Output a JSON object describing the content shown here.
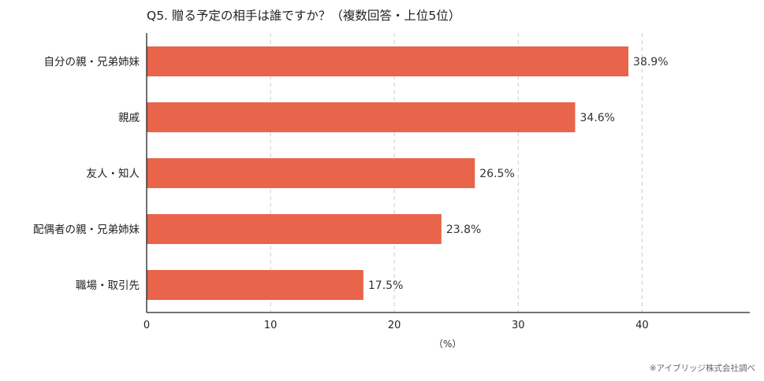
{
  "chart_data": {
    "type": "bar",
    "orientation": "horizontal",
    "title": "Q5. 贈る予定の相手は誰ですか？（複数回答・上位5位）",
    "categories": [
      "自分の親・兄弟姉妹",
      "親戚",
      "友人・知人",
      "配偶者の親・兄弟姉妹",
      "職場・取引先"
    ],
    "values": [
      38.9,
      34.6,
      26.5,
      23.8,
      17.5
    ],
    "value_labels": [
      "38.9%",
      "34.6%",
      "26.5%",
      "23.8%",
      "17.5%"
    ],
    "xlabel": "（%）",
    "xticks": [
      0,
      10,
      20,
      30,
      40
    ],
    "xlim": [
      0,
      48.7
    ],
    "grid": "vertical dashed",
    "bar_color": "#E8644B",
    "source": "※アイブリッジ株式会社調べ"
  }
}
